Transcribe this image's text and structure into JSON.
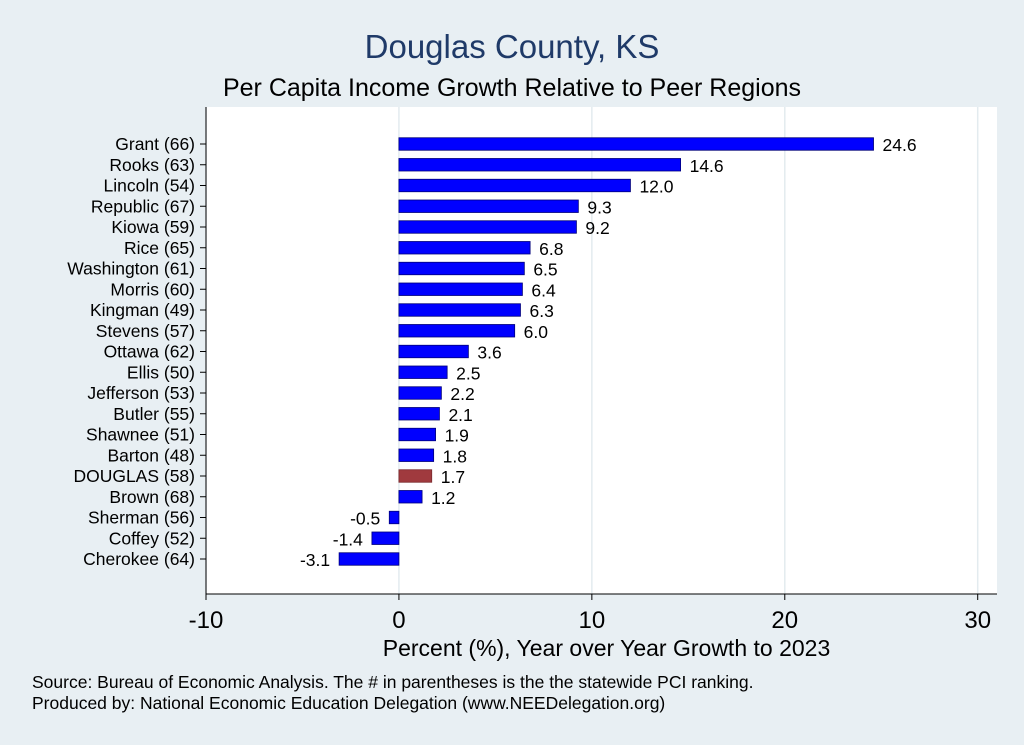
{
  "chart_data": {
    "type": "bar",
    "orientation": "horizontal",
    "title": "Douglas County, KS",
    "subtitle": "Per Capita Income Growth Relative to Peer Regions",
    "xlabel": "Percent (%), Year over Year Growth to 2023",
    "ylabel": "",
    "xlim": [
      -10,
      31
    ],
    "xticks": [
      -10,
      0,
      10,
      20,
      30
    ],
    "grid": true,
    "highlight_category": "DOUGLAS (58)",
    "bar_color": "#0000ff",
    "highlight_color": "#a03a3e",
    "categories": [
      "Grant (66)",
      "Rooks (63)",
      "Lincoln (54)",
      "Republic (67)",
      "Kiowa (59)",
      "Rice (65)",
      "Washington (61)",
      "Morris (60)",
      "Kingman (49)",
      "Stevens (57)",
      "Ottawa (62)",
      "Ellis (50)",
      "Jefferson (53)",
      "Butler (55)",
      "Shawnee (51)",
      "Barton (48)",
      "DOUGLAS (58)",
      "Brown (68)",
      "Sherman (56)",
      "Coffey (52)",
      "Cherokee (64)"
    ],
    "values": [
      24.6,
      14.6,
      12.0,
      9.3,
      9.2,
      6.8,
      6.5,
      6.4,
      6.3,
      6.0,
      3.6,
      2.5,
      2.2,
      2.1,
      1.9,
      1.8,
      1.7,
      1.2,
      -0.5,
      -1.4,
      -3.1
    ],
    "value_labels": [
      "24.6",
      "14.6",
      "12.0",
      "9.3",
      "9.2",
      "6.8",
      "6.5",
      "6.4",
      "6.3",
      "6.0",
      "3.6",
      "2.5",
      "2.2",
      "2.1",
      "1.9",
      "1.8",
      "1.7",
      "1.2",
      "-0.5",
      "-1.4",
      "-3.1"
    ]
  },
  "notes": {
    "source": "Source: Bureau of Economic Analysis. The # in parentheses is the the statewide PCI ranking.",
    "produced_by": "Produced by: National Economic Education Delegation (www.NEEDelegation.org)"
  }
}
